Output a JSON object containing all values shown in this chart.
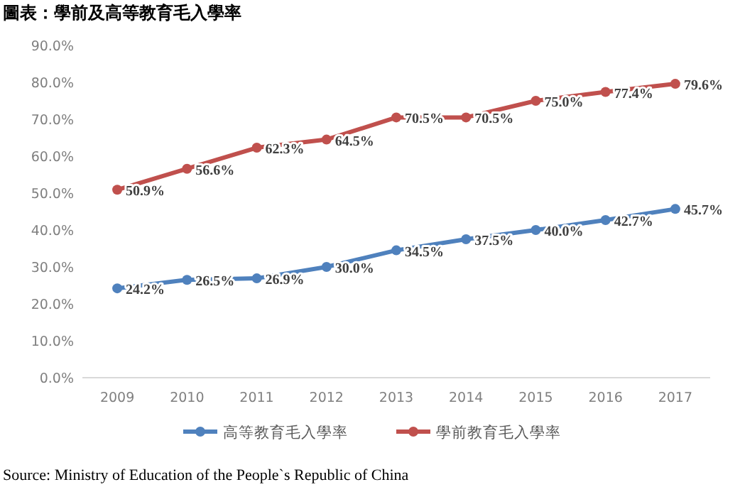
{
  "chart_data": {
    "type": "line",
    "title": "圖表：學前及高等教育毛入學率",
    "categories": [
      "2009",
      "2010",
      "2011",
      "2012",
      "2013",
      "2014",
      "2015",
      "2016",
      "2017"
    ],
    "series": [
      {
        "name": "高等教育毛入學率",
        "color": "#4f81bd",
        "values": [
          24.2,
          26.5,
          26.9,
          30.0,
          34.5,
          37.5,
          40.0,
          42.7,
          45.7
        ],
        "value_labels": [
          "24.2%",
          "26.5%",
          "26.9%",
          "30.0%",
          "34.5%",
          "37.5%",
          "40.0%",
          "42.7%",
          "45.7%"
        ]
      },
      {
        "name": "學前教育毛入學率",
        "color": "#c0504d",
        "values": [
          50.9,
          56.6,
          62.3,
          64.5,
          70.5,
          70.5,
          75.0,
          77.4,
          79.6
        ],
        "value_labels": [
          "50.9%",
          "56.6%",
          "62.3%",
          "64.5%",
          "70.5%",
          "70.5%",
          "75.0%",
          "77.4%",
          "79.6%"
        ]
      }
    ],
    "ylim": [
      0,
      90
    ],
    "yticks": [
      {
        "value": 0,
        "label": "0.0%"
      },
      {
        "value": 10,
        "label": "10.0%"
      },
      {
        "value": 20,
        "label": "20.0%"
      },
      {
        "value": 30,
        "label": "30.0%"
      },
      {
        "value": 40,
        "label": "40.0%"
      },
      {
        "value": 50,
        "label": "50.0%"
      },
      {
        "value": 60,
        "label": "60.0%"
      },
      {
        "value": 70,
        "label": "70.0%"
      },
      {
        "value": 80,
        "label": "80.0%"
      },
      {
        "value": 90,
        "label": "90.0%"
      }
    ],
    "marker": "circle",
    "legend": "bottom",
    "annotations": [
      "Source: Ministry of Education of the People`s Republic of China"
    ]
  }
}
